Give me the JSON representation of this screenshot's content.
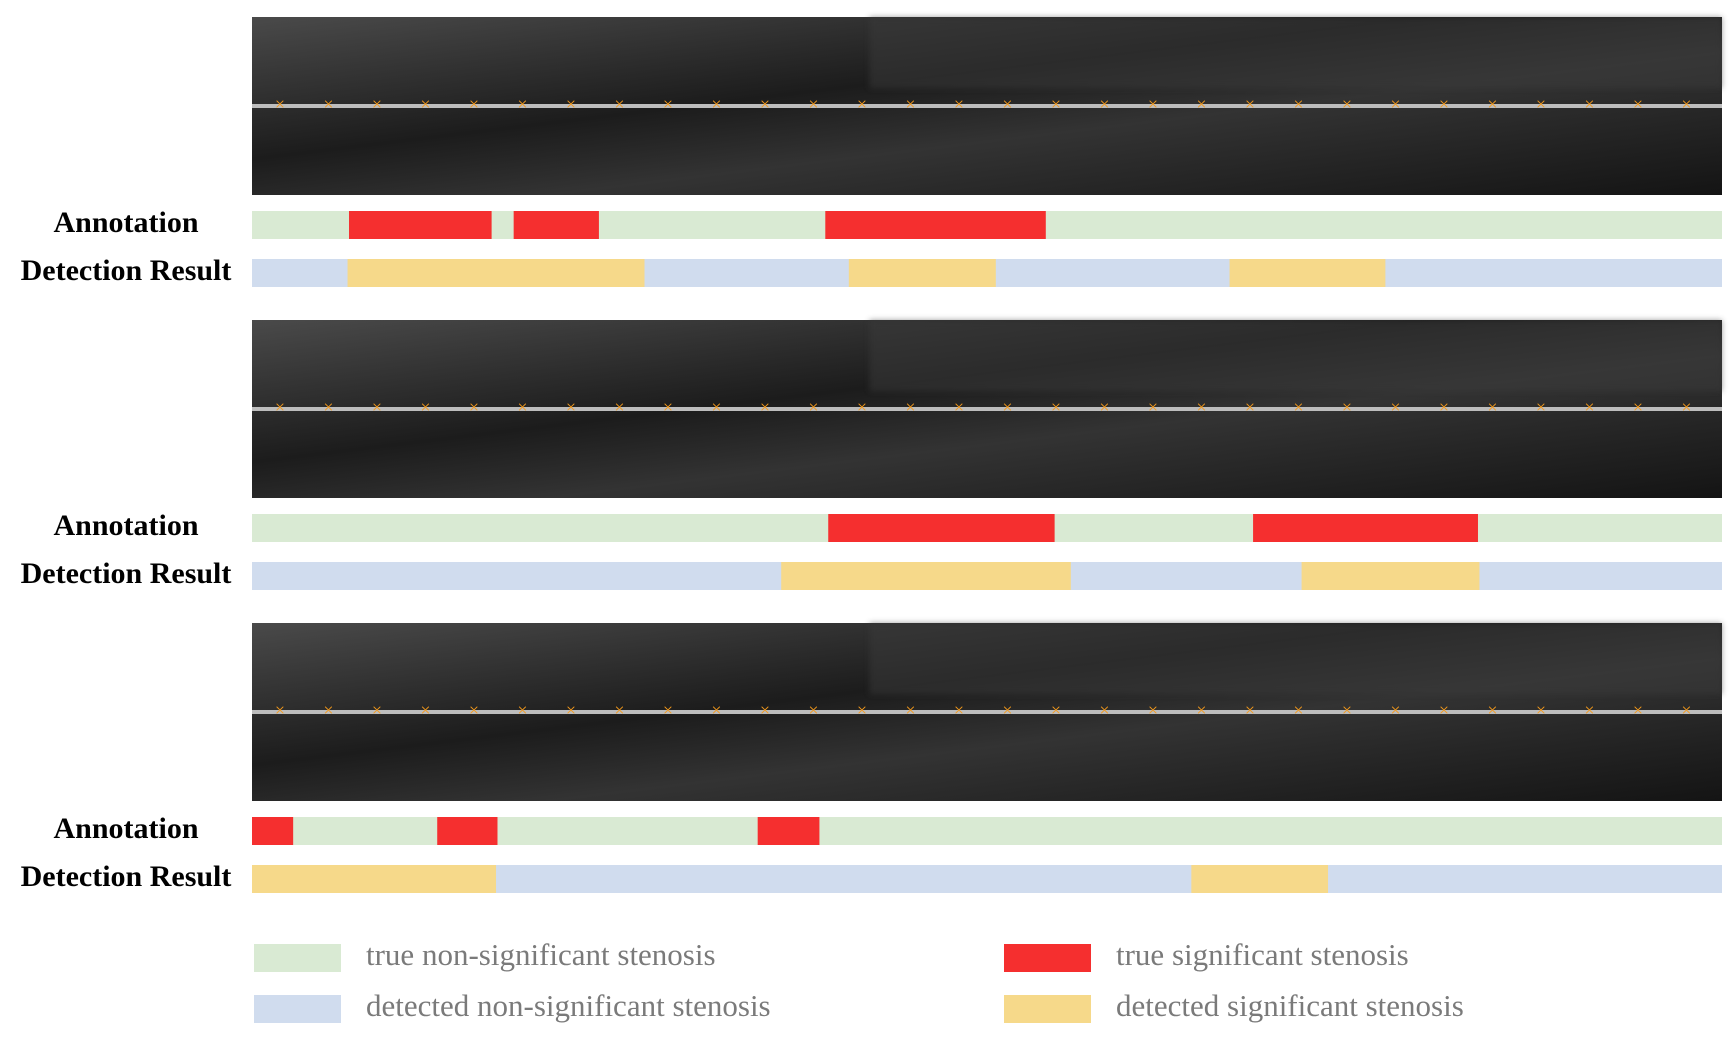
{
  "panels": [
    {
      "rows": [
        {
          "label": "Annotation",
          "segments": [
            [
              0.066,
              0.163
            ],
            [
              0.178,
              0.236
            ],
            [
              0.39,
              0.54
            ]
          ]
        },
        {
          "label": "Detection Result",
          "segments": [
            [
              0.065,
              0.267
            ],
            [
              0.406,
              0.506
            ],
            [
              0.665,
              0.771
            ]
          ]
        }
      ]
    },
    {
      "rows": [
        {
          "label": "Annotation",
          "segments": [
            [
              0.392,
              0.546
            ],
            [
              0.681,
              0.834
            ]
          ]
        },
        {
          "label": "Detection Result",
          "segments": [
            [
              0.36,
              0.557
            ],
            [
              0.714,
              0.835
            ]
          ]
        }
      ]
    },
    {
      "rows": [
        {
          "label": "Annotation",
          "segments": [
            [
              0,
              0.028
            ],
            [
              0.126,
              0.167
            ],
            [
              0.344,
              0.386
            ]
          ]
        },
        {
          "label": "Detection Result",
          "segments": [
            [
              0,
              0.166
            ],
            [
              0.639,
              0.732
            ]
          ]
        }
      ]
    }
  ],
  "legend": [
    {
      "name": "true non-significant stenosis",
      "color": "#d9ead3"
    },
    {
      "name": "true significant stenosis",
      "color": "#f52f2f"
    },
    {
      "name": "detected non-significant stenosis",
      "color": "#d0dcee"
    },
    {
      "name": "detected significant stenosis",
      "color": "#f6d98a"
    }
  ]
}
